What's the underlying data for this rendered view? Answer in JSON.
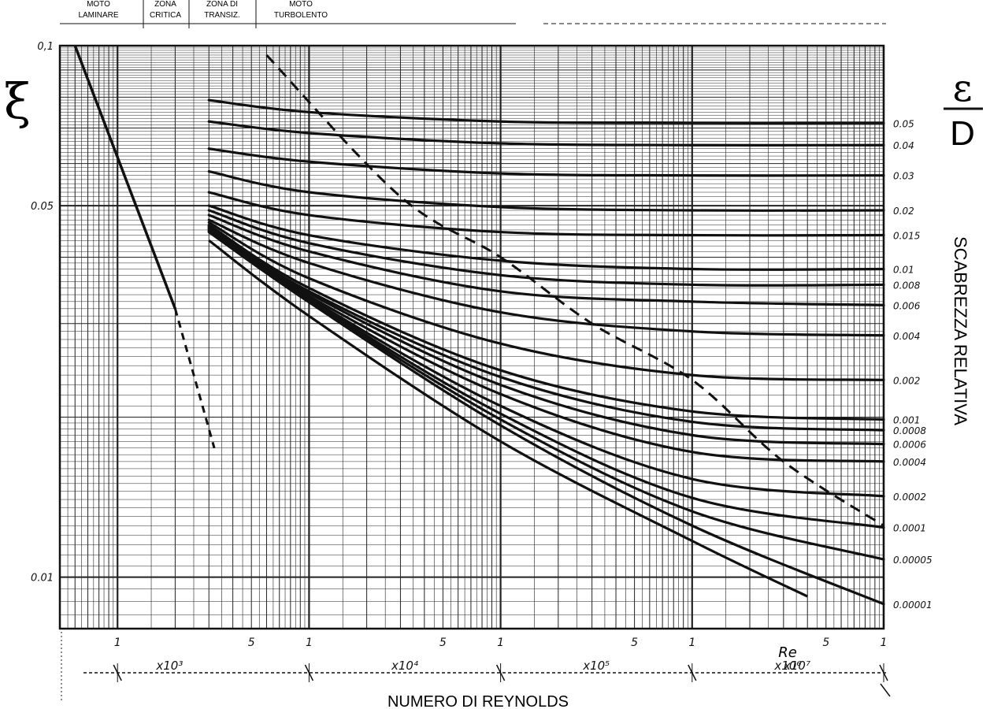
{
  "zones": [
    {
      "line1": "MOTO",
      "line2": "LAMINARE"
    },
    {
      "line1": "ZONA",
      "line2": "CRITICA"
    },
    {
      "line1": "ZONA DI",
      "line2": "TRANSIZ."
    },
    {
      "line1": "MOTO",
      "line2": "TURBOLENTO"
    }
  ],
  "y_symbol": "ξ",
  "rr_symbol_top": "ε",
  "rr_symbol_bottom": "D",
  "right_axis_label": "SCABREZZA RELATIVA",
  "xlabel": "NUMERO DI REYNOLDS",
  "re_label": "Re",
  "colors": {
    "ink": "#111111",
    "grid": "#222222",
    "background": "#ffffff"
  },
  "chart_data": {
    "type": "line",
    "x_scale": "log",
    "y_scale": "log",
    "xlim": [
      500,
      10000000
    ],
    "ylim": [
      0.008,
      0.1
    ],
    "grid": true,
    "y_tick_labels": [
      {
        "value": 0.1,
        "label": "0,1"
      },
      {
        "value": 0.05,
        "label": "0.05"
      },
      {
        "value": 0.01,
        "label": "0.01"
      }
    ],
    "x_tick_labels": [
      {
        "value": 1000,
        "label": "1"
      },
      {
        "value": 5000,
        "label": "5"
      },
      {
        "value": 10000,
        "label": "1"
      },
      {
        "value": 50000,
        "label": "5"
      },
      {
        "value": 100000,
        "label": "1"
      },
      {
        "value": 500000,
        "label": "5"
      },
      {
        "value": 1000000,
        "label": "1"
      },
      {
        "value": 5000000,
        "label": "5"
      },
      {
        "value": 10000000,
        "label": "1"
      }
    ],
    "decade_labels": [
      "x10³",
      "x10⁴",
      "x10⁵",
      "x10⁶",
      "x10⁷"
    ],
    "laminar_line": {
      "name": "",
      "x": [
        600,
        2000
      ],
      "y": [
        0.1,
        0.032
      ]
    },
    "critical_dashed": {
      "name": "",
      "x": [
        2000,
        3200
      ],
      "y": [
        0.032,
        0.0175
      ]
    },
    "complete_turbulence_boundary": {
      "name": "",
      "x": [
        6000,
        30000,
        100000,
        300000,
        1000000,
        3000000,
        10000000
      ],
      "y": [
        0.096,
        0.052,
        0.04,
        0.03,
        0.0235,
        0.0165,
        0.0125
      ]
    },
    "roughness_labels": [
      "0.05",
      "0.04",
      "0.03",
      "0.02",
      "0.015",
      "0.01",
      "0.008",
      "0.006",
      "0.004",
      "0.002",
      "0.001",
      "0.0008",
      "0.0006",
      "0.0004",
      "0.0002",
      "0.0001",
      "0.00005",
      "0.00001"
    ],
    "roughness_curves": [
      {
        "label": "0.05",
        "x": [
          3000,
          10000,
          100000,
          1000000,
          10000000
        ],
        "y": [
          0.079,
          0.075,
          0.072,
          0.0715,
          0.0715
        ]
      },
      {
        "label": "0.04",
        "x": [
          3000,
          10000,
          100000,
          1000000,
          10000000
        ],
        "y": [
          0.072,
          0.0685,
          0.0655,
          0.065,
          0.065
        ]
      },
      {
        "label": "0.03",
        "x": [
          3000,
          10000,
          100000,
          1000000,
          10000000
        ],
        "y": [
          0.064,
          0.0605,
          0.0575,
          0.057,
          0.057
        ]
      },
      {
        "label": "0.02",
        "x": [
          3000,
          10000,
          100000,
          1000000,
          10000000
        ],
        "y": [
          0.058,
          0.053,
          0.0497,
          0.049,
          0.049
        ]
      },
      {
        "label": "0.015",
        "x": [
          3000,
          10000,
          100000,
          1000000,
          10000000
        ],
        "y": [
          0.053,
          0.048,
          0.0446,
          0.044,
          0.044
        ]
      },
      {
        "label": "0.01",
        "x": [
          3000,
          10000,
          100000,
          1000000,
          10000000
        ],
        "y": [
          0.05,
          0.044,
          0.0394,
          0.038,
          0.038
        ]
      },
      {
        "label": "0.008",
        "x": [
          3000,
          10000,
          100000,
          1000000,
          10000000
        ],
        "y": [
          0.049,
          0.0425,
          0.037,
          0.0355,
          0.0355
        ]
      },
      {
        "label": "0.006",
        "x": [
          3000,
          10000,
          100000,
          1000000,
          10000000
        ],
        "y": [
          0.048,
          0.041,
          0.0345,
          0.033,
          0.0325
        ]
      },
      {
        "label": "0.004",
        "x": [
          3000,
          10000,
          100000,
          1000000,
          10000000
        ],
        "y": [
          0.047,
          0.039,
          0.0315,
          0.029,
          0.0285
        ]
      },
      {
        "label": "0.002",
        "x": [
          3000,
          10000,
          100000,
          1000000,
          10000000
        ],
        "y": [
          0.0465,
          0.0365,
          0.0275,
          0.024,
          0.0235
        ]
      },
      {
        "label": "0.001",
        "x": [
          3000,
          10000,
          100000,
          1000000,
          10000000
        ],
        "y": [
          0.046,
          0.035,
          0.0245,
          0.0205,
          0.0198
        ]
      },
      {
        "label": "0.0008",
        "x": [
          3000,
          10000,
          100000,
          1000000,
          10000000
        ],
        "y": [
          0.0458,
          0.0345,
          0.0238,
          0.0196,
          0.0189
        ]
      },
      {
        "label": "0.0006",
        "x": [
          3000,
          10000,
          100000,
          1000000,
          10000000
        ],
        "y": [
          0.0456,
          0.0342,
          0.023,
          0.0185,
          0.0178
        ]
      },
      {
        "label": "0.0004",
        "x": [
          3000,
          10000,
          100000,
          1000000,
          10000000
        ],
        "y": [
          0.0454,
          0.0338,
          0.0221,
          0.0172,
          0.0165
        ]
      },
      {
        "label": "0.0002",
        "x": [
          3000,
          10000,
          100000,
          1000000,
          10000000
        ],
        "y": [
          0.0452,
          0.0335,
          0.021,
          0.0153,
          0.0142
        ]
      },
      {
        "label": "0.0001",
        "x": [
          3000,
          10000,
          100000,
          1000000,
          10000000
        ],
        "y": [
          0.045,
          0.0333,
          0.0203,
          0.0141,
          0.0124
        ]
      },
      {
        "label": "0.00005",
        "x": [
          3000,
          10000,
          100000,
          1000000,
          10000000
        ],
        "y": [
          0.0448,
          0.0331,
          0.0198,
          0.0133,
          0.0108
        ]
      },
      {
        "label": "0.00001",
        "x": [
          3000,
          10000,
          100000,
          1000000,
          10000000
        ],
        "y": [
          0.0446,
          0.0329,
          0.0193,
          0.0125,
          0.0089
        ]
      }
    ],
    "smooth_pipe_curve": {
      "name": "",
      "x": [
        3000,
        10000,
        100000,
        1000000,
        4000000
      ],
      "y": [
        0.043,
        0.031,
        0.018,
        0.0117,
        0.0092
      ]
    }
  }
}
